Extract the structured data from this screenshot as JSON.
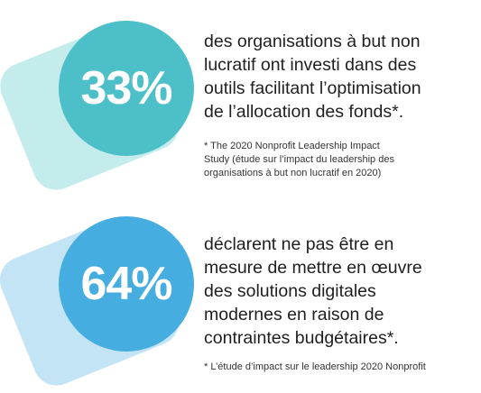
{
  "stats": [
    {
      "value": "33%",
      "text": "des organisations à but non\nlucratif ont investi dans des\noutils facilitant l’optimisation\nde l’allocation des fonds*.",
      "footnote": "* The 2020 Nonprofit Leadership Impact\nStudy (étude sur l’impact du leadership des\norganisations à but non lucratif en 2020)"
    },
    {
      "value": "64%",
      "text": "déclarent ne pas être en\nmesure de mettre en œuvre\ndes solutions digitales\nmodernes en raison de\ncontraintes budgétaires*.",
      "footnote": "* L’étude d’impact sur le leadership 2020 Nonprofit"
    }
  ],
  "colors": {
    "circle_1": "#4dbfc8",
    "blob_1": "#c5ecec",
    "circle_2": "#46ade0",
    "blob_2": "#c3e4f5"
  }
}
